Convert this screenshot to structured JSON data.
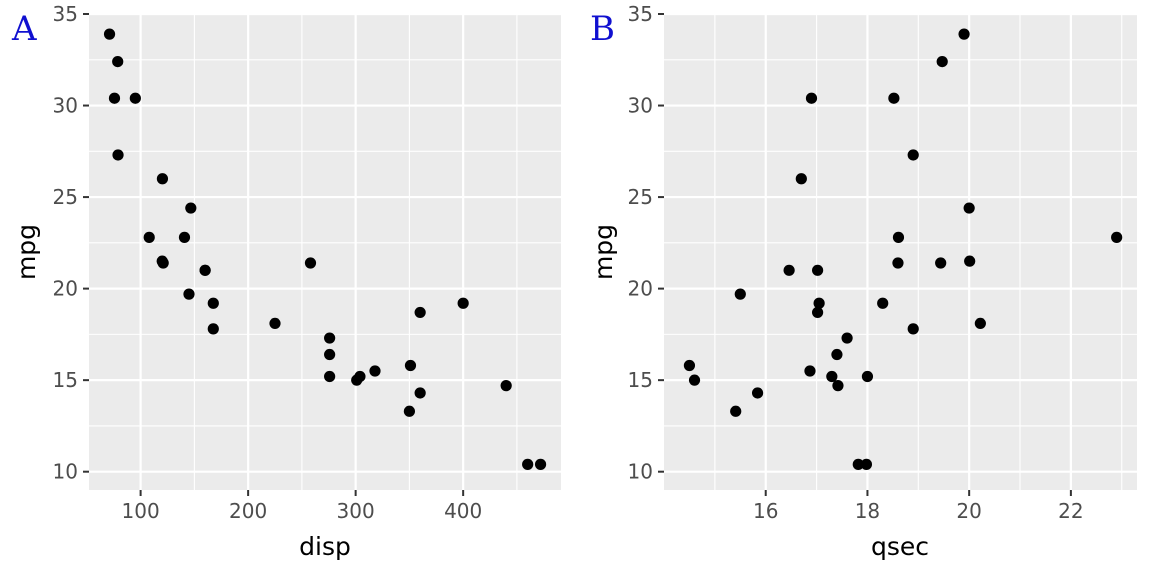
{
  "chart_data": [
    {
      "type": "scatter",
      "panel_tag": "A",
      "xlabel": "disp",
      "ylabel": "mpg",
      "xlim": [
        52.0,
        491.0
      ],
      "ylim": [
        9.0,
        35.0
      ],
      "x_ticks": [
        100,
        200,
        300,
        400
      ],
      "y_ticks": [
        10,
        15,
        20,
        25,
        30,
        35
      ],
      "grid": true,
      "x": [
        160,
        160,
        108,
        258,
        360,
        225,
        360,
        146.7,
        140.8,
        167.6,
        167.6,
        275.8,
        275.8,
        275.8,
        472,
        460,
        440,
        78.7,
        75.7,
        71.1,
        120.1,
        318,
        304,
        350,
        400,
        79,
        120.3,
        95.1,
        351,
        145,
        301,
        121
      ],
      "y": [
        21,
        21,
        22.8,
        21.4,
        18.7,
        18.1,
        14.3,
        24.4,
        22.8,
        19.2,
        17.8,
        16.4,
        17.3,
        15.2,
        10.4,
        10.4,
        14.7,
        32.4,
        30.4,
        33.9,
        21.5,
        15.5,
        15.2,
        13.3,
        19.2,
        27.3,
        26,
        30.4,
        15.8,
        19.7,
        15,
        21.4
      ]
    },
    {
      "type": "scatter",
      "panel_tag": "B",
      "xlabel": "qsec",
      "ylabel": "mpg",
      "xlim": [
        14.0,
        23.3
      ],
      "ylim": [
        9.0,
        35.0
      ],
      "x_ticks": [
        16,
        18,
        20,
        22
      ],
      "y_ticks": [
        10,
        15,
        20,
        25,
        30,
        35
      ],
      "grid": true,
      "x": [
        16.46,
        17.02,
        18.61,
        19.44,
        17.02,
        20.22,
        15.84,
        20.0,
        22.9,
        18.3,
        18.9,
        17.4,
        17.6,
        18.0,
        17.98,
        17.82,
        17.42,
        19.47,
        18.52,
        19.9,
        20.01,
        16.87,
        17.3,
        15.41,
        17.05,
        18.9,
        16.7,
        16.9,
        14.5,
        15.5,
        14.6,
        18.6
      ],
      "y": [
        21,
        21,
        22.8,
        21.4,
        18.7,
        18.1,
        14.3,
        24.4,
        22.8,
        19.2,
        17.8,
        16.4,
        17.3,
        15.2,
        10.4,
        10.4,
        14.7,
        32.4,
        30.4,
        33.9,
        21.5,
        15.5,
        15.2,
        13.3,
        19.2,
        27.3,
        26,
        30.4,
        15.8,
        19.7,
        15,
        21.4
      ]
    }
  ]
}
